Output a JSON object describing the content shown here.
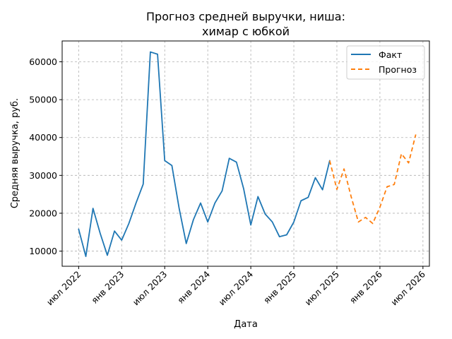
{
  "chart_data": {
    "type": "line",
    "title_line1": "Прогноз средней выручки, ниша:",
    "title_line2": "химар с юбкой",
    "xlabel": "Дата",
    "ylabel": "Средняя выручка, руб.",
    "ylim": [
      6000,
      65500
    ],
    "yticks": [
      10000,
      20000,
      30000,
      40000,
      50000,
      60000
    ],
    "ytick_labels": [
      "10000",
      "20000",
      "30000",
      "40000",
      "50000",
      "60000"
    ],
    "xticks": [
      {
        "label": "июл 2022",
        "month_index": 0
      },
      {
        "label": "янв 2023",
        "month_index": 6
      },
      {
        "label": "июл 2023",
        "month_index": 12
      },
      {
        "label": "янв 2024",
        "month_index": 18
      },
      {
        "label": "июл 2024",
        "month_index": 24
      },
      {
        "label": "янв 2025",
        "month_index": 30
      },
      {
        "label": "июл 2025",
        "month_index": 36
      },
      {
        "label": "янв 2026",
        "month_index": 42
      },
      {
        "label": "июл 2026",
        "month_index": 48
      }
    ],
    "xlim_months": [
      -2.3,
      48.9
    ],
    "grid": true,
    "legend_position": "top-right",
    "series": [
      {
        "name": "Факт",
        "color": "#1f77b4",
        "style": "solid",
        "x_months": [
          0,
          1,
          2,
          3,
          4,
          5,
          6,
          7,
          8,
          9,
          10,
          11,
          12,
          13,
          14,
          15,
          16,
          17,
          18,
          19,
          20,
          21,
          22,
          23,
          24,
          25,
          26,
          27,
          28,
          29,
          30,
          31,
          32,
          33,
          34,
          35
        ],
        "values": [
          15800,
          8600,
          21300,
          14700,
          8900,
          15300,
          12900,
          17300,
          22700,
          27700,
          62600,
          62000,
          33900,
          32600,
          21400,
          12000,
          18300,
          22700,
          17700,
          22700,
          25900,
          34500,
          33500,
          26500,
          16900,
          24400,
          19800,
          17700,
          13800,
          14300,
          17700,
          23300,
          24200,
          29400,
          26200,
          33900
        ]
      },
      {
        "name": "Прогноз",
        "color": "#ff7f0e",
        "style": "dashed",
        "x_months": [
          35,
          36,
          37,
          38,
          39,
          40,
          41,
          42,
          43,
          44,
          45,
          46,
          47
        ],
        "values": [
          33900,
          26300,
          31700,
          24300,
          17700,
          18900,
          17300,
          21600,
          27000,
          27600,
          35700,
          33300,
          40800
        ]
      }
    ]
  }
}
